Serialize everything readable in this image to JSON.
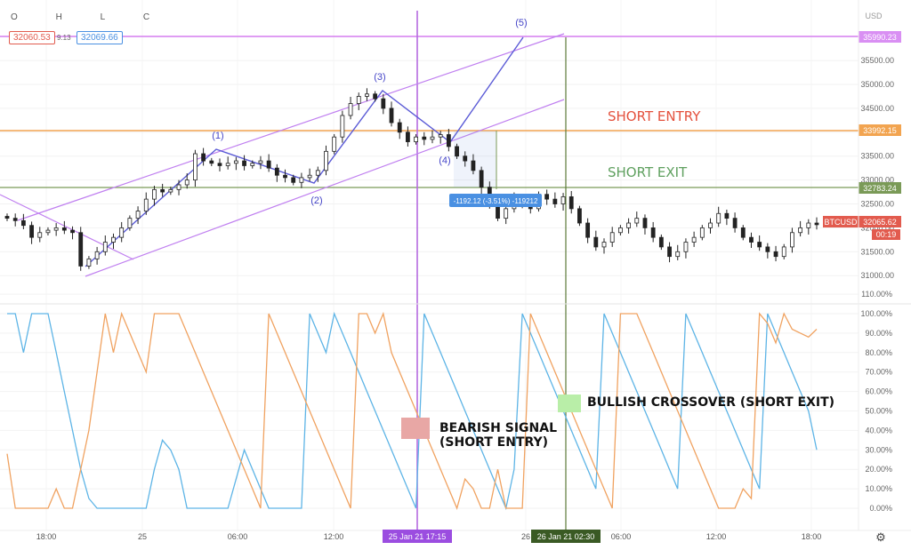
{
  "header": {
    "ohlc_labels": [
      "O",
      "H",
      "L",
      "C"
    ],
    "bid": "32060.53",
    "spread": "9.13",
    "ask": "32069.66"
  },
  "price_axis": {
    "currency": "USD",
    "ticks": [
      "36000.00",
      "35500.00",
      "35000.00",
      "34500.00",
      "34000.00",
      "33500.00",
      "33000.00",
      "32500.00",
      "32000.00",
      "31500.00",
      "31000.00"
    ],
    "flags": {
      "top": "35990.23",
      "entry": "33992.15",
      "exit": "32783.24",
      "symbol": "BTCUSD",
      "last": "32065.62",
      "countdown": "00:19"
    }
  },
  "osc_axis": {
    "ticks": [
      "110.00%",
      "100.00%",
      "90.00%",
      "80.00%",
      "70.00%",
      "60.00%",
      "50.00%",
      "40.00%",
      "30.00%",
      "20.00%",
      "10.00%",
      "0.00%"
    ]
  },
  "time_axis": {
    "ticks": [
      "18:00",
      "25",
      "06:00",
      "12:00",
      "26",
      "06:00",
      "12:00",
      "18:00"
    ],
    "cursor1": "25 Jan 21   17:15",
    "cursor2": "26 Jan 21   02:30"
  },
  "annotations": {
    "short_entry": "SHORT ENTRY",
    "short_exit": "SHORT EXIT",
    "measure": "-1192.12 (-3.51%) -119212",
    "bearish_line1": "BEARISH SIGNAL",
    "bearish_line2": "(SHORT ENTRY)",
    "bullish": "BULLISH CROSSOVER (SHORT EXIT)",
    "waves": [
      "(1)",
      "(2)",
      "(3)",
      "(4)",
      "(5)"
    ]
  },
  "colors": {
    "candle": "#222222",
    "purple": "#c97ff0",
    "wave": "#5b5bd6",
    "orange": "#f2a450",
    "green_line": "#7a9a57",
    "entry_text": "#e4513d",
    "exit_text": "#5fa05f",
    "blue_osc": "#5db4e6",
    "orange_osc": "#f0a260",
    "measure_bg": "#4a90e2",
    "last_price_bg": "#e25b4e"
  },
  "chart_data": [
    {
      "type": "candlestick",
      "ylabel": "USD",
      "ylim": [
        30600,
        36200
      ],
      "x_ticks": [
        "18:00",
        "25",
        "06:00",
        "12:00",
        "26",
        "06:00",
        "12:00",
        "18:00"
      ],
      "close_path": [
        32200,
        32150,
        32050,
        31800,
        31900,
        31950,
        32000,
        31950,
        31900,
        31200,
        31350,
        31500,
        31700,
        31800,
        32000,
        32200,
        32350,
        32600,
        32800,
        32750,
        32800,
        32900,
        33000,
        33550,
        33400,
        33350,
        33300,
        33350,
        33400,
        33300,
        33350,
        33400,
        33250,
        33100,
        33050,
        32950,
        33050,
        33100,
        33200,
        33600,
        33900,
        34350,
        34600,
        34750,
        34800,
        34700,
        34500,
        34200,
        34000,
        33800,
        33900,
        33850,
        33900,
        33950,
        33700,
        33500,
        33400,
        33200,
        32850,
        32500,
        32200,
        32400,
        32600,
        32550,
        32400,
        32700,
        32600,
        32500,
        32650,
        32400,
        32100,
        31800,
        31600,
        31700,
        31900,
        32000,
        32100,
        32200,
        32000,
        31800,
        31600,
        31400,
        31500,
        31700,
        31800,
        32000,
        32100,
        32300,
        32200,
        32000,
        31800,
        31700,
        31600,
        31500,
        31400,
        31600,
        31900,
        32000,
        32100,
        32065
      ],
      "horizontal_levels": [
        {
          "price": 35990.23,
          "label": "top"
        },
        {
          "price": 33992.15,
          "label": "SHORT ENTRY"
        },
        {
          "price": 32783.24,
          "label": "SHORT EXIT"
        }
      ],
      "elliott_wave": [
        {
          "label": "(1)",
          "price": 33600
        },
        {
          "label": "(2)",
          "price": 32950
        },
        {
          "label": "(3)",
          "price": 34850
        },
        {
          "label": "(4)",
          "price": 33700
        },
        {
          "label": "(5)",
          "price": 35990
        }
      ],
      "measure": {
        "change": -1192.12,
        "percent": -3.51,
        "ticks": -119212
      }
    },
    {
      "type": "line",
      "ylim": [
        0,
        110
      ],
      "y_unit": "%",
      "series": [
        {
          "values": [
            100,
            100,
            80,
            100,
            100,
            100,
            80,
            60,
            40,
            20,
            5,
            0,
            0,
            0,
            0,
            0,
            0,
            0,
            20,
            35,
            30,
            20,
            0,
            0,
            0,
            0,
            0,
            0,
            15,
            30,
            20,
            10,
            0,
            0,
            0,
            0,
            0,
            100,
            90,
            80,
            100,
            90,
            80,
            70,
            60,
            50,
            40,
            30,
            20,
            10,
            0,
            100,
            90,
            80,
            70,
            60,
            50,
            40,
            30,
            20,
            10,
            0,
            20,
            100,
            90,
            80,
            70,
            60,
            50,
            40,
            30,
            20,
            10,
            100,
            90,
            80,
            70,
            60,
            50,
            40,
            30,
            20,
            10,
            100,
            90,
            80,
            70,
            60,
            50,
            40,
            30,
            20,
            10,
            100,
            90,
            80,
            70,
            60,
            50,
            30
          ]
        },
        {
          "values": [
            28,
            0,
            0,
            0,
            0,
            0,
            10,
            0,
            0,
            20,
            40,
            70,
            100,
            80,
            100,
            90,
            80,
            70,
            100,
            100,
            100,
            100,
            90,
            80,
            70,
            60,
            50,
            40,
            30,
            20,
            10,
            0,
            100,
            90,
            80,
            70,
            60,
            50,
            40,
            30,
            20,
            10,
            0,
            100,
            100,
            90,
            100,
            80,
            70,
            60,
            50,
            40,
            30,
            20,
            10,
            0,
            15,
            10,
            0,
            0,
            20,
            0,
            0,
            0,
            100,
            90,
            80,
            70,
            60,
            50,
            40,
            30,
            20,
            10,
            0,
            100,
            100,
            100,
            90,
            80,
            70,
            60,
            50,
            40,
            30,
            20,
            10,
            0,
            0,
            0,
            10,
            5,
            100,
            95,
            85,
            100,
            92,
            90,
            88,
            92
          ]
        }
      ]
    }
  ]
}
